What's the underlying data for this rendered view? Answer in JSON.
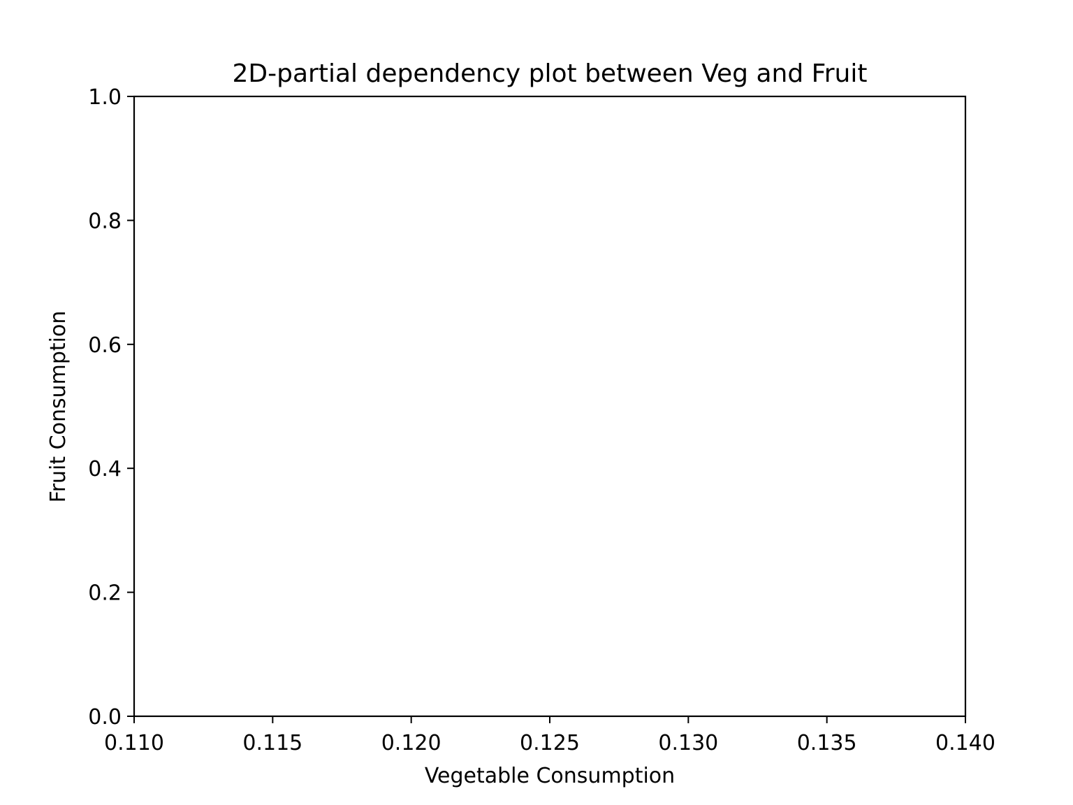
{
  "chart_data": {
    "type": "heatmap",
    "title": "2D-partial dependency plot between Veg and Fruit",
    "xlabel": "Vegetable Consumption",
    "ylabel": "Fruit Consumption",
    "xlim": [
      0.11,
      0.14
    ],
    "ylim": [
      0.0,
      1.0
    ],
    "x_ticks": [
      "0.110",
      "0.115",
      "0.120",
      "0.125",
      "0.130",
      "0.135",
      "0.140"
    ],
    "y_ticks": [
      "0.0",
      "0.2",
      "0.4",
      "0.6",
      "0.8",
      "1.0"
    ],
    "grid": false,
    "values": []
  }
}
